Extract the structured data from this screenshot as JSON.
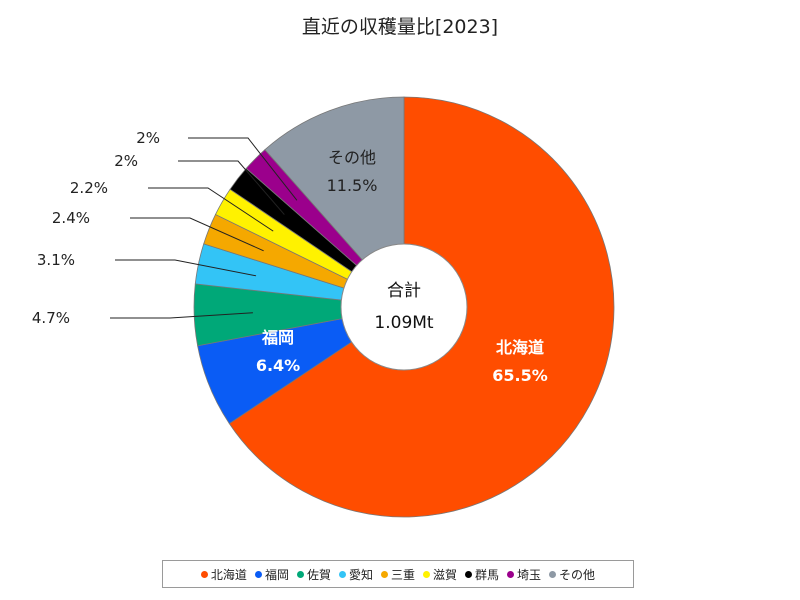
{
  "chart_data": {
    "type": "pie",
    "title": "直近の収穫量比[2023]",
    "center_label": "合計",
    "center_value": "1.09Mt",
    "categories": [
      "北海道",
      "福岡",
      "佐賀",
      "愛知",
      "三重",
      "滋賀",
      "群馬",
      "埼玉",
      "その他"
    ],
    "values": [
      65.5,
      6.4,
      4.7,
      3.1,
      2.4,
      2.2,
      2,
      2,
      11.5
    ],
    "value_labels": [
      "65.5%",
      "6.4%",
      "4.7%",
      "3.1%",
      "2.4%",
      "2.2%",
      "2%",
      "2%",
      "11.5%"
    ],
    "colors": [
      "#ff4d00",
      "#0a5cf5",
      "#00a878",
      "#33c4f6",
      "#f5a800",
      "#fff200",
      "#000000",
      "#9b008c",
      "#8e99a5"
    ],
    "legend_position": "bottom"
  }
}
